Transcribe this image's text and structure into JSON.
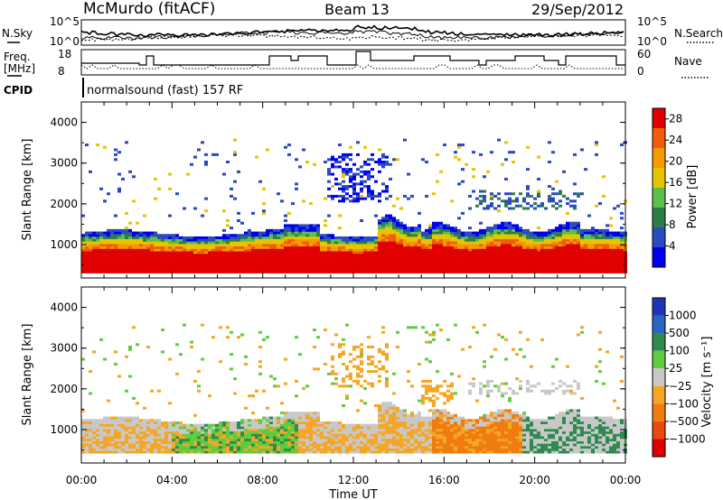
{
  "header": {
    "station": "McMurdo (fitACF)",
    "beam": "Beam 13",
    "date": "29/Sep/2012"
  },
  "noise_panel": {
    "left_label": "N.Sky",
    "right_label": "N.Search",
    "left_ticks": [
      "10^5",
      "10^0"
    ],
    "right_ticks": [
      "10^5",
      "10^0"
    ]
  },
  "freq_panel": {
    "left_label_1": "Freq.",
    "left_label_2": "[MHz]",
    "right_label": "Nave",
    "left_ticks": [
      "18",
      "8"
    ],
    "right_ticks": [
      "60",
      "0"
    ],
    "freq_range": [
      8,
      18
    ],
    "nave_range": [
      0,
      60
    ]
  },
  "cpid": {
    "label": "CPID",
    "text": "normalsound (fast) 157 RF"
  },
  "colors": {
    "power": [
      "#0000ee",
      "#2b4bc0",
      "#2e7d46",
      "#5bbf4a",
      "#e8c400",
      "#f59b00",
      "#f25c0d",
      "#e00000"
    ],
    "velocity": [
      "#2233bb",
      "#2a64c4",
      "#2e8a4e",
      "#5fcc3f",
      "#c8c8c8",
      "#f5a623",
      "#f07c10",
      "#e84a10",
      "#e00000"
    ]
  },
  "chart_data": [
    {
      "type": "heatmap",
      "title": "Power",
      "ylabel": "Slant Range [km]",
      "xlabel": "Time UT",
      "x_range": [
        "00:00",
        "24:00"
      ],
      "ylim": [
        180,
        4500
      ],
      "x_ticks": [
        "00:00",
        "04:00",
        "08:00",
        "12:00",
        "16:00",
        "20:00",
        "00:00"
      ],
      "y_ticks": [
        1000,
        2000,
        3000,
        4000
      ],
      "colorbar": {
        "label": "Power [dB]",
        "range": [
          0,
          30
        ],
        "ticks": [
          4,
          8,
          12,
          16,
          20,
          24,
          28
        ]
      }
    },
    {
      "type": "heatmap",
      "title": "Velocity",
      "ylabel": "Slant Range [km]",
      "xlabel": "Time UT",
      "x_range": [
        "00:00",
        "24:00"
      ],
      "ylim": [
        180,
        4500
      ],
      "x_ticks": [
        "00:00",
        "04:00",
        "08:00",
        "12:00",
        "16:00",
        "20:00",
        "00:00"
      ],
      "y_ticks": [
        1000,
        2000,
        3000,
        4000
      ],
      "colorbar": {
        "label": "Velocity [m s⁻¹]",
        "ticks": [
          "1000",
          "500",
          "100",
          "25",
          "−25",
          "−100",
          "−500",
          "−1000"
        ]
      }
    }
  ]
}
